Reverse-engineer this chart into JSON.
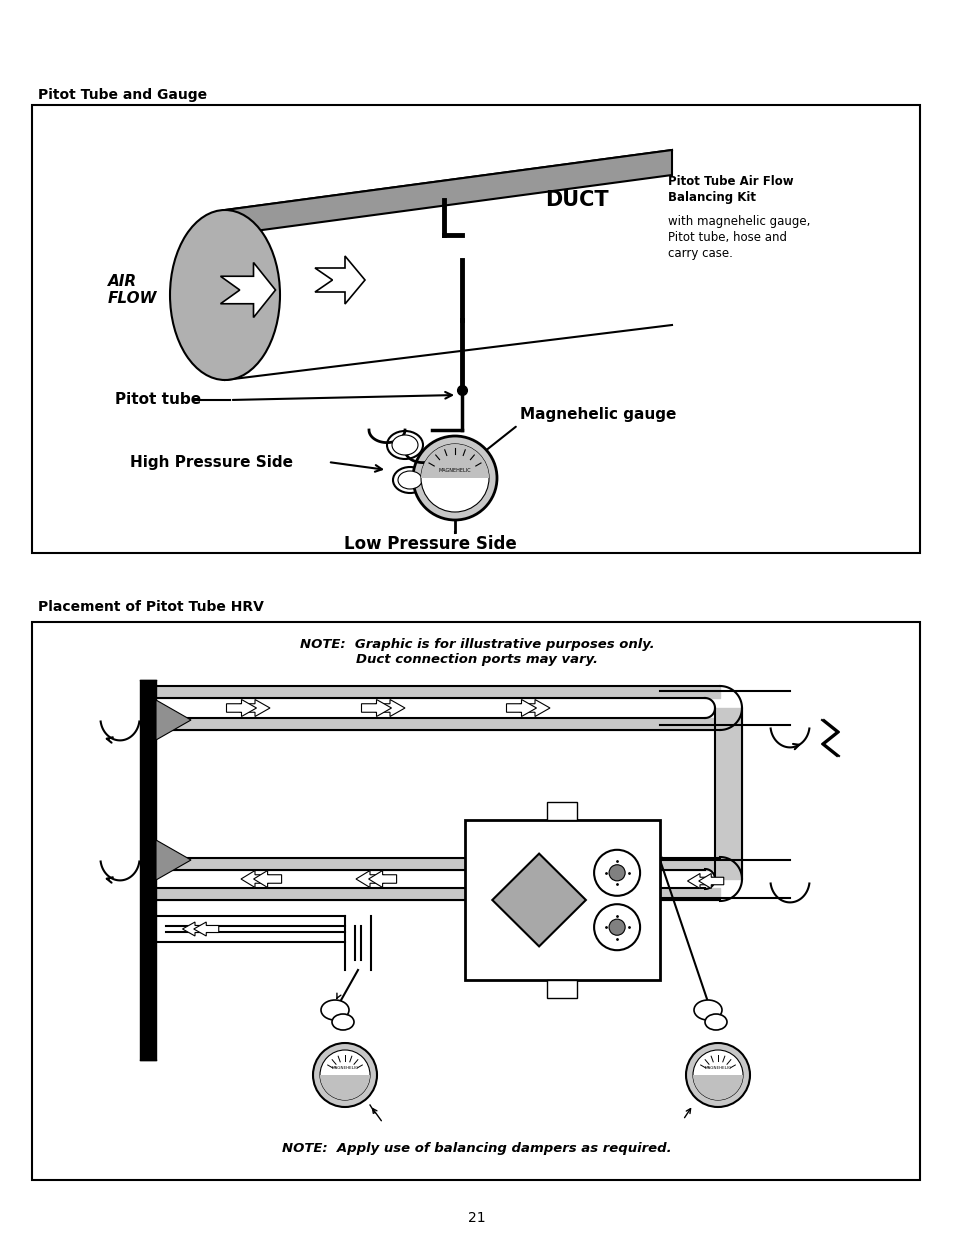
{
  "page_bg": "#ffffff",
  "section1_title": "Pitot Tube and Gauge",
  "section2_title": "Placement of Pitot Tube HRV",
  "box2_note1": "NOTE:  Graphic is for illustrative purposes only.\nDuct connection ports may vary.",
  "box2_note2": "NOTE:  Apply use of balancing dampers as required.",
  "page_number": "21",
  "gray_duct": "#b0b0b0",
  "gray_band": "#989898",
  "gray_light": "#c8c8c8",
  "gray_gauge": "#c0c0c0",
  "gray_hrv_diamond": "#a8a8a8"
}
